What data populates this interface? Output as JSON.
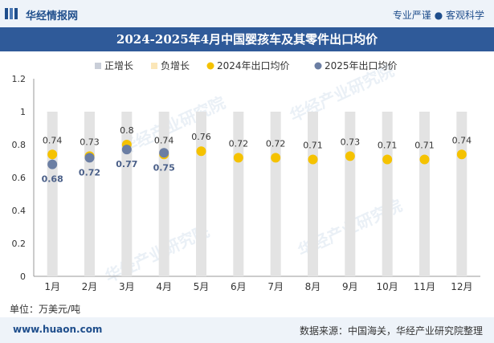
{
  "header": {
    "brand": "华经情报网",
    "tagline": "专业严谨 ● 客观科学",
    "title": "2024-2025年4月中国婴孩车及其零件出口均价"
  },
  "footer": {
    "unit": "单位：万美元/吨",
    "website": "www.huaon.com",
    "source": "数据来源：中国海关，华经产业研究院整理"
  },
  "watermark": {
    "text": "华经产业研究院"
  },
  "colors": {
    "header_bg": "#eef3f9",
    "title_bg": "#2f5a99",
    "brand": "#1f4e8c",
    "bar": "#e3e3e3",
    "series_2024": "#f5c200",
    "series_2025": "#6b7ea3"
  },
  "chart_data": {
    "type": "bar+scatter",
    "title": "2024-2025年4月中国婴孩车及其零件出口均价",
    "categories": [
      "1月",
      "2月",
      "3月",
      "4月",
      "5月",
      "6月",
      "7月",
      "8月",
      "9月",
      "10月",
      "11月",
      "12月"
    ],
    "legend": [
      {
        "name": "正增长",
        "marker": "square",
        "color": "#c9ced8"
      },
      {
        "name": "负增长",
        "marker": "square",
        "color": "#fbe6b8"
      },
      {
        "name": "2024年出口均价",
        "marker": "circle",
        "color": "#f5c200"
      },
      {
        "name": "2025年出口均价",
        "marker": "circle",
        "color": "#6b7ea3"
      }
    ],
    "series": [
      {
        "name": "2024年出口均价",
        "values": [
          0.74,
          0.73,
          0.8,
          0.74,
          0.76,
          0.72,
          0.72,
          0.71,
          0.73,
          0.71,
          0.71,
          0.74
        ]
      },
      {
        "name": "2025年出口均价",
        "values": [
          0.68,
          0.72,
          0.77,
          0.75
        ]
      }
    ],
    "background_bar_value": 1,
    "ylim": [
      0,
      1.2
    ],
    "yticks": [
      0,
      0.2,
      0.4,
      0.6,
      0.8,
      1,
      1.2
    ],
    "legend_position": "top-center"
  }
}
